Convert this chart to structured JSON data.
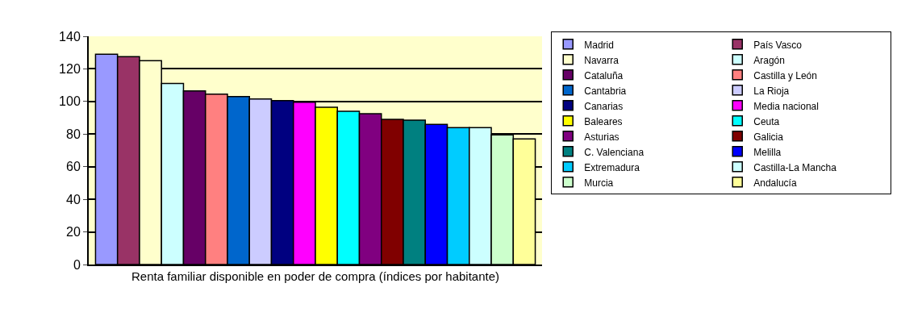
{
  "chart_data": {
    "type": "bar",
    "categories": [
      "Renta familiar disponible en poder de compra (índices por habitante)"
    ],
    "series": [
      {
        "name": "Madrid",
        "color": "#9999ff",
        "values": [
          129
        ]
      },
      {
        "name": "País Vasco",
        "color": "#993366",
        "values": [
          127.5
        ]
      },
      {
        "name": "Navarra",
        "color": "#ffffcc",
        "values": [
          125
        ]
      },
      {
        "name": "Aragón",
        "color": "#ccffff",
        "values": [
          111
        ]
      },
      {
        "name": "Cataluña",
        "color": "#660066",
        "values": [
          106.5
        ]
      },
      {
        "name": "Castilla y León",
        "color": "#ff8080",
        "values": [
          104.5
        ]
      },
      {
        "name": "Cantabria",
        "color": "#0066cc",
        "values": [
          103
        ]
      },
      {
        "name": "La Rioja",
        "color": "#ccccff",
        "values": [
          101.5
        ]
      },
      {
        "name": "Canarias",
        "color": "#000080",
        "values": [
          100.5
        ]
      },
      {
        "name": "Media nacional",
        "color": "#ff00ff",
        "values": [
          99.5
        ]
      },
      {
        "name": "Baleares",
        "color": "#ffff00",
        "values": [
          96.5
        ]
      },
      {
        "name": "Ceuta",
        "color": "#00ffff",
        "values": [
          94
        ]
      },
      {
        "name": "Asturias",
        "color": "#800080",
        "values": [
          92.5
        ]
      },
      {
        "name": "Galicia",
        "color": "#800000",
        "values": [
          89
        ]
      },
      {
        "name": "C. Valenciana",
        "color": "#008080",
        "values": [
          88.5
        ]
      },
      {
        "name": "Melilla",
        "color": "#0000ff",
        "values": [
          86
        ]
      },
      {
        "name": "Extremadura",
        "color": "#00ccff",
        "values": [
          84
        ]
      },
      {
        "name": "Castilla-La Mancha",
        "color": "#ccffff",
        "values": [
          84
        ]
      },
      {
        "name": "Murcia",
        "color": "#ccffcc",
        "values": [
          79.5
        ]
      },
      {
        "name": "Andalucía",
        "color": "#ffff99",
        "values": [
          77
        ]
      }
    ],
    "ylim": [
      0,
      140
    ],
    "yticks": [
      0,
      20,
      40,
      60,
      80,
      100,
      120,
      140
    ],
    "grid": "y",
    "legend": "right"
  }
}
